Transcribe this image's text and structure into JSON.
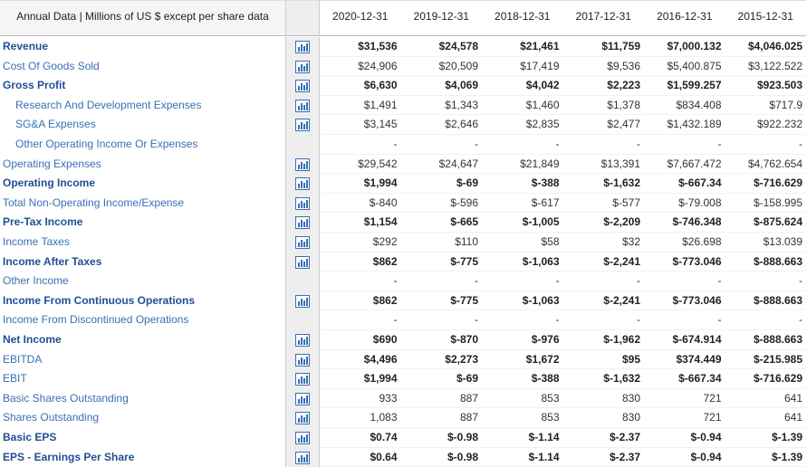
{
  "header": {
    "title": "Annual Data | Millions of US $ except per share data",
    "columns": [
      "2020-12-31",
      "2019-12-31",
      "2018-12-31",
      "2017-12-31",
      "2016-12-31",
      "2015-12-31"
    ]
  },
  "table": {
    "rows": [
      {
        "label": "Revenue",
        "values": [
          "$31,536",
          "$24,578",
          "$21,461",
          "$11,759",
          "$7,000.132",
          "$4,046.025"
        ]
      },
      {
        "label": "Cost Of Goods Sold",
        "values": [
          "$24,906",
          "$20,509",
          "$17,419",
          "$9,536",
          "$5,400.875",
          "$3,122.522"
        ]
      },
      {
        "label": "Gross Profit",
        "values": [
          "$6,630",
          "$4,069",
          "$4,042",
          "$2,223",
          "$1,599.257",
          "$923.503"
        ]
      },
      {
        "label": "Research And Development Expenses",
        "values": [
          "$1,491",
          "$1,343",
          "$1,460",
          "$1,378",
          "$834.408",
          "$717.9"
        ]
      },
      {
        "label": "SG&A Expenses",
        "values": [
          "$3,145",
          "$2,646",
          "$2,835",
          "$2,477",
          "$1,432.189",
          "$922.232"
        ]
      },
      {
        "label": "Other Operating Income Or Expenses",
        "values": [
          "-",
          "-",
          "-",
          "-",
          "-",
          "-"
        ]
      },
      {
        "label": "Operating Expenses",
        "values": [
          "$29,542",
          "$24,647",
          "$21,849",
          "$13,391",
          "$7,667.472",
          "$4,762.654"
        ]
      },
      {
        "label": "Operating Income",
        "values": [
          "$1,994",
          "$-69",
          "$-388",
          "$-1,632",
          "$-667.34",
          "$-716.629"
        ]
      },
      {
        "label": "Total Non-Operating Income/Expense",
        "values": [
          "$-840",
          "$-596",
          "$-617",
          "$-577",
          "$-79.008",
          "$-158.995"
        ]
      },
      {
        "label": "Pre-Tax Income",
        "values": [
          "$1,154",
          "$-665",
          "$-1,005",
          "$-2,209",
          "$-746.348",
          "$-875.624"
        ]
      },
      {
        "label": "Income Taxes",
        "values": [
          "$292",
          "$110",
          "$58",
          "$32",
          "$26.698",
          "$13.039"
        ]
      },
      {
        "label": "Income After Taxes",
        "values": [
          "$862",
          "$-775",
          "$-1,063",
          "$-2,241",
          "$-773.046",
          "$-888.663"
        ]
      },
      {
        "label": "Other Income",
        "values": [
          "-",
          "-",
          "-",
          "-",
          "-",
          "-"
        ]
      },
      {
        "label": "Income From Continuous Operations",
        "values": [
          "$862",
          "$-775",
          "$-1,063",
          "$-2,241",
          "$-773.046",
          "$-888.663"
        ]
      },
      {
        "label": "Income From Discontinued Operations",
        "values": [
          "-",
          "-",
          "-",
          "-",
          "-",
          "-"
        ]
      },
      {
        "label": "Net Income",
        "values": [
          "$690",
          "$-870",
          "$-976",
          "$-1,962",
          "$-674.914",
          "$-888.663"
        ]
      },
      {
        "label": "EBITDA",
        "values": [
          "$4,496",
          "$2,273",
          "$1,672",
          "$95",
          "$374.449",
          "$-215.985"
        ]
      },
      {
        "label": "EBIT",
        "values": [
          "$1,994",
          "$-69",
          "$-388",
          "$-1,632",
          "$-667.34",
          "$-716.629"
        ]
      },
      {
        "label": "Basic Shares Outstanding",
        "values": [
          "933",
          "887",
          "853",
          "830",
          "721",
          "641"
        ]
      },
      {
        "label": "Shares Outstanding",
        "values": [
          "1,083",
          "887",
          "853",
          "830",
          "721",
          "641"
        ]
      },
      {
        "label": "Basic EPS",
        "values": [
          "$0.74",
          "$-0.98",
          "$-1.14",
          "$-2.37",
          "$-0.94",
          "$-1.39"
        ]
      },
      {
        "label": "EPS - Earnings Per Share",
        "values": [
          "$0.64",
          "$-0.98",
          "$-1.14",
          "$-2.37",
          "$-0.94",
          "$-1.39"
        ]
      }
    ]
  }
}
